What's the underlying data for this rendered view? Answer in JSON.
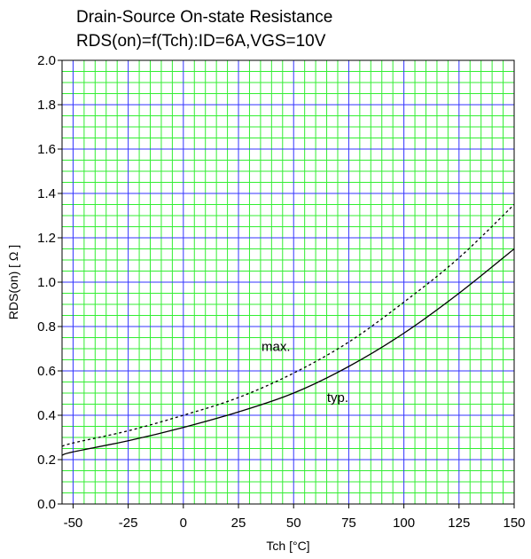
{
  "chart_data": {
    "type": "line",
    "title": "Drain-Source On-state Resistance",
    "subtitle": "RDS(on)=f(Tch):ID=6A,VGS=10V",
    "xlabel": "Tch [°C]",
    "ylabel": "RDS(on) [ Ω ]",
    "xlim": [
      -55,
      150
    ],
    "ylim": [
      0.0,
      2.0
    ],
    "x_ticks": [
      -50,
      -25,
      0,
      25,
      50,
      75,
      100,
      125,
      150
    ],
    "x_tick_labels": [
      "-50",
      "-25",
      "0",
      "25",
      "50",
      "75",
      "100",
      "125",
      "150"
    ],
    "y_ticks": [
      0.0,
      0.2,
      0.4,
      0.6,
      0.8,
      1.0,
      1.2,
      1.4,
      1.6,
      1.8,
      2.0
    ],
    "y_tick_labels": [
      "0.0",
      "0.2",
      "0.4",
      "0.6",
      "0.8",
      "1.0",
      "1.2",
      "1.4",
      "1.6",
      "1.8",
      "2.0"
    ],
    "grid": true,
    "grid_colors": {
      "major": "#3333ff",
      "minor": "#33ee33"
    },
    "series": [
      {
        "name": "max.",
        "style": "dashed",
        "color": "#000000",
        "x": [
          -55,
          -50,
          -25,
          0,
          25,
          50,
          75,
          100,
          125,
          150
        ],
        "y": [
          0.26,
          0.275,
          0.33,
          0.4,
          0.48,
          0.59,
          0.73,
          0.91,
          1.11,
          1.35
        ]
      },
      {
        "name": "typ.",
        "style": "solid",
        "color": "#000000",
        "x": [
          -55,
          -50,
          -25,
          0,
          25,
          50,
          75,
          100,
          125,
          150
        ],
        "y": [
          0.22,
          0.235,
          0.285,
          0.345,
          0.415,
          0.5,
          0.62,
          0.77,
          0.95,
          1.15
        ]
      }
    ],
    "annotations": [
      {
        "text": "max.",
        "x": 42,
        "y": 0.69,
        "target_series": "max."
      },
      {
        "text": "typ.",
        "x": 70,
        "y": 0.46,
        "target_series": "typ."
      }
    ]
  }
}
